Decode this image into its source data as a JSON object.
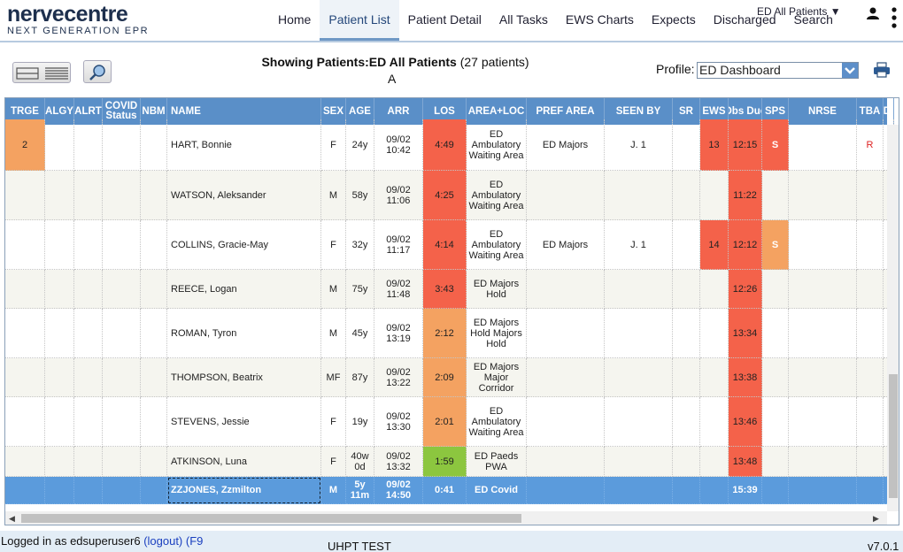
{
  "header": {
    "logo_brand": "nervecentre",
    "logo_tagline": "NEXT GENERATION EPR",
    "nav": [
      {
        "label": "Home"
      },
      {
        "label": "Patient List"
      },
      {
        "label": "Patient Detail"
      },
      {
        "label": "All Tasks"
      },
      {
        "label": "EWS Charts"
      },
      {
        "label": "Expects"
      },
      {
        "label": "Discharged"
      },
      {
        "label": "Search"
      }
    ],
    "active_nav": "Patient List",
    "context_menu": "ED All Patients ▼",
    "user_icon": "user-icon",
    "menu_icon": "kebab-menu-icon"
  },
  "toolbar": {
    "showing_prefix": "Showing Patients:",
    "showing_list": "ED All Patients",
    "showing_count": "(27 patients)",
    "showing_letter": "A",
    "profile_label": "Profile:",
    "profile_value": "ED Dashboard"
  },
  "columns": [
    "TRGE",
    "ALGY",
    "ALRT",
    "COVID Status",
    "NBM",
    "NAME",
    "SEX",
    "AGE",
    "ARR",
    "LOS",
    "AREA+LOC",
    "PREF AREA",
    "SEEN BY",
    "SR",
    "EWS",
    "Obs Due",
    "SPS",
    "NRSE",
    "TBA",
    "DI"
  ],
  "rows": [
    {
      "trge": "2",
      "name": "HART, Bonnie",
      "sex": "F",
      "age": "24y",
      "arr": "09/02 10:42",
      "los": "4:49",
      "area": "ED Ambulatory Waiting Area",
      "pref": "ED Majors",
      "seen": "J. 1",
      "ews": "13",
      "obs": "12:15",
      "sps": "S",
      "tba": "R"
    },
    {
      "trge": "",
      "name": "WATSON, Aleksander",
      "sex": "M",
      "age": "58y",
      "arr": "09/02 11:06",
      "los": "4:25",
      "area": "ED Ambulatory Waiting Area",
      "pref": "",
      "seen": "",
      "ews": "",
      "obs": "11:22",
      "sps": "",
      "tba": ""
    },
    {
      "trge": "",
      "name": "COLLINS, Gracie-May",
      "sex": "F",
      "age": "32y",
      "arr": "09/02 11:17",
      "los": "4:14",
      "area": "ED Ambulatory Waiting Area",
      "pref": "ED Majors",
      "seen": "J. 1",
      "ews": "14",
      "obs": "12:12",
      "sps": "S",
      "tba": ""
    },
    {
      "trge": "",
      "name": "REECE, Logan",
      "sex": "M",
      "age": "75y",
      "arr": "09/02 11:48",
      "los": "3:43",
      "area": "ED Majors Hold",
      "pref": "",
      "seen": "",
      "ews": "",
      "obs": "12:26",
      "sps": "",
      "tba": ""
    },
    {
      "trge": "",
      "name": "ROMAN, Tyron",
      "sex": "M",
      "age": "45y",
      "arr": "09/02 13:19",
      "los": "2:12",
      "area": "ED Majors Hold Majors Hold",
      "pref": "",
      "seen": "",
      "ews": "",
      "obs": "13:34",
      "sps": "",
      "tba": ""
    },
    {
      "trge": "",
      "name": "THOMPSON, Beatrix",
      "sex": "MF",
      "age": "87y",
      "arr": "09/02 13:22",
      "los": "2:09",
      "area": "ED Majors Major Corridor",
      "pref": "",
      "seen": "",
      "ews": "",
      "obs": "13:38",
      "sps": "",
      "tba": ""
    },
    {
      "trge": "",
      "name": "STEVENS, Jessie",
      "sex": "F",
      "age": "19y",
      "arr": "09/02 13:30",
      "los": "2:01",
      "area": "ED Ambulatory Waiting Area",
      "pref": "",
      "seen": "",
      "ews": "",
      "obs": "13:46",
      "sps": "",
      "tba": ""
    },
    {
      "trge": "",
      "name": "ATKINSON, Luna",
      "sex": "F",
      "age": "40w 0d",
      "arr": "09/02 13:32",
      "los": "1:59",
      "area": "ED Paeds PWA",
      "pref": "",
      "seen": "",
      "ews": "",
      "obs": "13:48",
      "sps": "",
      "tba": ""
    },
    {
      "trge": "",
      "name": "ZZJONES, Zzmilton",
      "sex": "M",
      "age": "5y 11m",
      "arr": "09/02 14:50",
      "los": "0:41",
      "area": "ED Covid",
      "pref": "",
      "seen": "",
      "ews": "",
      "obs": "15:39",
      "sps": "",
      "tba": ""
    }
  ],
  "colors": {
    "header_blue": "#5a8fc8",
    "los_red": "#f4624a",
    "los_orange": "#f4a261",
    "los_green": "#8cc63f",
    "triage_orange": "#f4a261",
    "ews_red": "#f4624a",
    "selected_row": "#5b9bdc"
  },
  "footer": {
    "login_text": "Logged in as edsuperuser6",
    "logout_link": "(logout)",
    "f9_text": "(F9",
    "env": "UHPT TEST",
    "version": "v7.0.1"
  }
}
